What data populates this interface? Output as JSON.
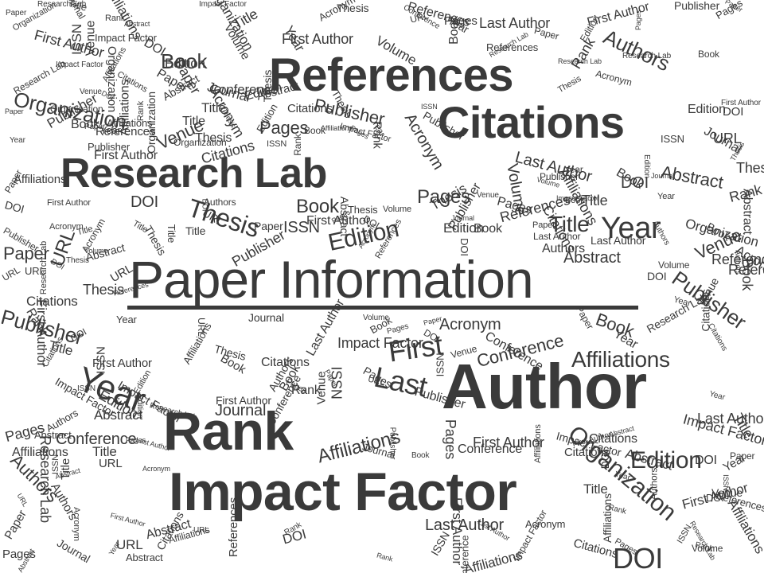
{
  "title": "Paper Information",
  "colors": {
    "text": "#3a3a3a",
    "background": "#ffffff"
  },
  "feature_words": [
    "References",
    "Citations",
    "Research Lab",
    "Author",
    "Rank",
    "Impact Factor",
    "Year",
    "Thesis",
    "Edition",
    "Title",
    "First",
    "Last",
    "Organization",
    "Affiliations",
    "Publisher",
    "Conference",
    "Abstract",
    "Pages",
    "Book",
    "Journal",
    "Volume",
    "Venue",
    "Acronym",
    "DOI",
    "ISSN",
    "URL",
    "Paper",
    "Authors",
    "First Author",
    "Last Author"
  ],
  "filler_words": [
    "Title",
    "Year",
    "DOI",
    "Book",
    "ISSN",
    "URL",
    "Pages",
    "Thesis",
    "Venue",
    "Edition",
    "Journal",
    "Volume",
    "Acronym",
    "Publisher",
    "Abstract",
    "Conference",
    "Organization",
    "Affiliations",
    "References",
    "Citations",
    "Research Lab",
    "First Author",
    "Last Author",
    "Impact Factor",
    "Authors",
    "Rank",
    "Paper"
  ]
}
